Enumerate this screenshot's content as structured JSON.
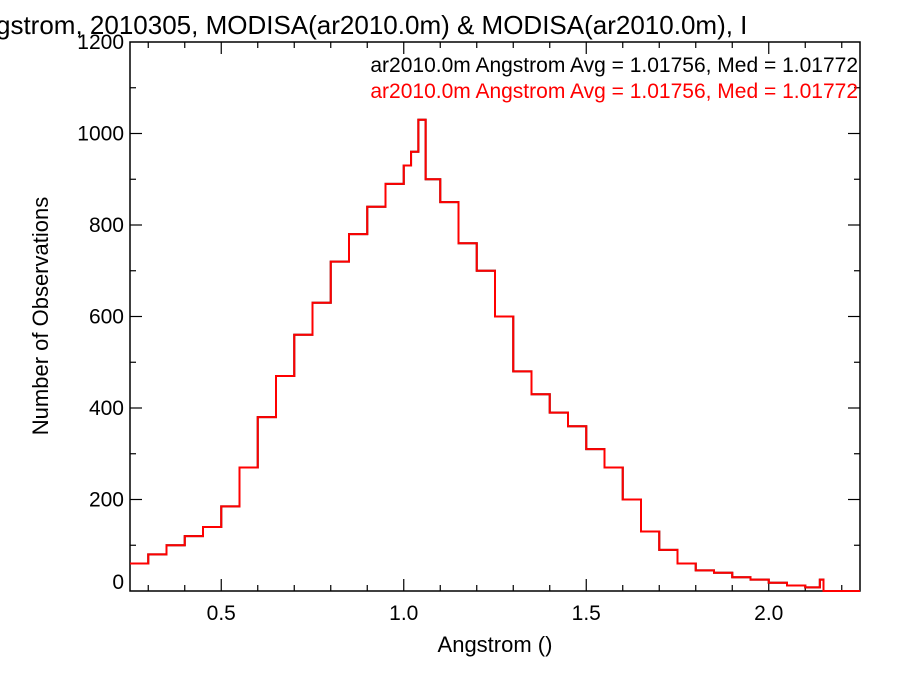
{
  "chart_data": {
    "type": "line",
    "title": "gstrom, 2010305, MODISA(ar2010.0m) & MODISA(ar2010.0m), I",
    "xlabel": "Angstrom ()",
    "ylabel": "Number of Observations",
    "xlim": [
      0.25,
      2.25
    ],
    "ylim": [
      0,
      1200
    ],
    "x_ticks": [
      "0.5",
      "1.0",
      "1.5",
      "2.0"
    ],
    "y_ticks": [
      "0",
      "200",
      "400",
      "600",
      "800",
      "1000",
      "1200"
    ],
    "grid": false,
    "step": true,
    "series": [
      {
        "name": "ar2010.0m Angstrom Avg = 1.01756, Med = 1.01772",
        "color": "#000000",
        "x": [
          0.25,
          0.3,
          0.35,
          0.4,
          0.45,
          0.5,
          0.55,
          0.6,
          0.65,
          0.7,
          0.75,
          0.8,
          0.85,
          0.9,
          0.95,
          1.0,
          1.02,
          1.04,
          1.06,
          1.1,
          1.15,
          1.2,
          1.25,
          1.3,
          1.35,
          1.4,
          1.45,
          1.5,
          1.55,
          1.6,
          1.65,
          1.7,
          1.75,
          1.8,
          1.85,
          1.9,
          1.95,
          2.0,
          2.05,
          2.1,
          2.14,
          2.15,
          2.25
        ],
        "y": [
          60,
          80,
          100,
          120,
          140,
          185,
          270,
          380,
          470,
          560,
          630,
          720,
          780,
          840,
          890,
          930,
          960,
          1030,
          900,
          850,
          760,
          700,
          600,
          480,
          430,
          390,
          360,
          310,
          270,
          200,
          130,
          90,
          60,
          45,
          40,
          30,
          25,
          18,
          12,
          8,
          25,
          0,
          0
        ]
      },
      {
        "name": "ar2010.0m Angstrom Avg = 1.01756, Med = 1.01772",
        "color": "#ff0000",
        "x": [
          0.25,
          0.3,
          0.35,
          0.4,
          0.45,
          0.5,
          0.55,
          0.6,
          0.65,
          0.7,
          0.75,
          0.8,
          0.85,
          0.9,
          0.95,
          1.0,
          1.02,
          1.04,
          1.06,
          1.1,
          1.15,
          1.2,
          1.25,
          1.3,
          1.35,
          1.4,
          1.45,
          1.5,
          1.55,
          1.6,
          1.65,
          1.7,
          1.75,
          1.8,
          1.85,
          1.9,
          1.95,
          2.0,
          2.05,
          2.1,
          2.14,
          2.15,
          2.25
        ],
        "y": [
          60,
          80,
          100,
          120,
          140,
          185,
          270,
          380,
          470,
          560,
          630,
          720,
          780,
          840,
          890,
          930,
          960,
          1030,
          900,
          850,
          760,
          700,
          600,
          480,
          430,
          390,
          360,
          310,
          270,
          200,
          130,
          90,
          60,
          45,
          40,
          30,
          25,
          18,
          12,
          8,
          25,
          0,
          0
        ]
      }
    ]
  }
}
